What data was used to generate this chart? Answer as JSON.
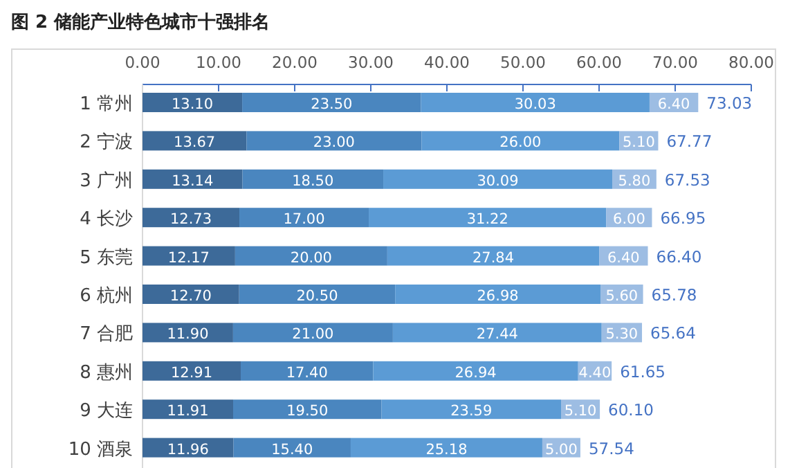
{
  "chart_data": {
    "type": "bar",
    "title": "图 2 储能产业特色城市十强排名",
    "orientation": "horizontal",
    "stacked": true,
    "grid": false,
    "categories": [
      "1 常州",
      "2 宁波",
      "3 广州",
      "4 长沙",
      "5 东莞",
      "6 杭州",
      "7 合肥",
      "8 惠州",
      "9 大连",
      "10 酒泉"
    ],
    "xlim": [
      0,
      80
    ],
    "xticks": [
      {
        "value": 0,
        "label": "0.00"
      },
      {
        "value": 10,
        "label": "10.00"
      },
      {
        "value": 20,
        "label": "20.00"
      },
      {
        "value": 30,
        "label": "30.00"
      },
      {
        "value": 40,
        "label": "40.00"
      },
      {
        "value": 50,
        "label": "50.00"
      },
      {
        "value": 60,
        "label": "60.00"
      },
      {
        "value": 70,
        "label": "70.00"
      },
      {
        "value": 80,
        "label": "80.00"
      }
    ],
    "series": [
      {
        "color": "#3d6a99",
        "values": [
          13.1,
          13.67,
          13.14,
          12.73,
          12.17,
          12.7,
          11.9,
          12.91,
          11.91,
          11.96
        ],
        "value_labels": [
          "13.10",
          "13.67",
          "13.14",
          "12.73",
          "12.17",
          "12.70",
          "11.90",
          "12.91",
          "11.91",
          "11.96"
        ]
      },
      {
        "color": "#4a86bf",
        "values": [
          23.5,
          23.0,
          18.5,
          17.0,
          20.0,
          20.5,
          21.0,
          17.4,
          19.5,
          15.4
        ],
        "value_labels": [
          "23.50",
          "23.00",
          "18.50",
          "17.00",
          "20.00",
          "20.50",
          "21.00",
          "17.40",
          "19.50",
          "15.40"
        ]
      },
      {
        "color": "#5b9bd5",
        "values": [
          30.03,
          26.0,
          30.09,
          31.22,
          27.84,
          26.98,
          27.44,
          26.94,
          23.59,
          25.18
        ],
        "value_labels": [
          "30.03",
          "26.00",
          "30.09",
          "31.22",
          "27.84",
          "26.98",
          "27.44",
          "26.94",
          "23.59",
          "25.18"
        ]
      },
      {
        "color": "#9dbde3",
        "values": [
          6.4,
          5.1,
          5.8,
          6.0,
          6.4,
          5.6,
          5.3,
          4.4,
          5.1,
          5.0
        ],
        "value_labels": [
          "6.40",
          "5.10",
          "5.80",
          "6.00",
          "6.40",
          "5.60",
          "5.30",
          "4.40",
          "5.10",
          "5.00"
        ]
      }
    ],
    "totals": [
      "73.03",
      "67.77",
      "67.53",
      "66.95",
      "66.40",
      "65.78",
      "65.64",
      "61.65",
      "60.10",
      "57.54"
    ]
  }
}
